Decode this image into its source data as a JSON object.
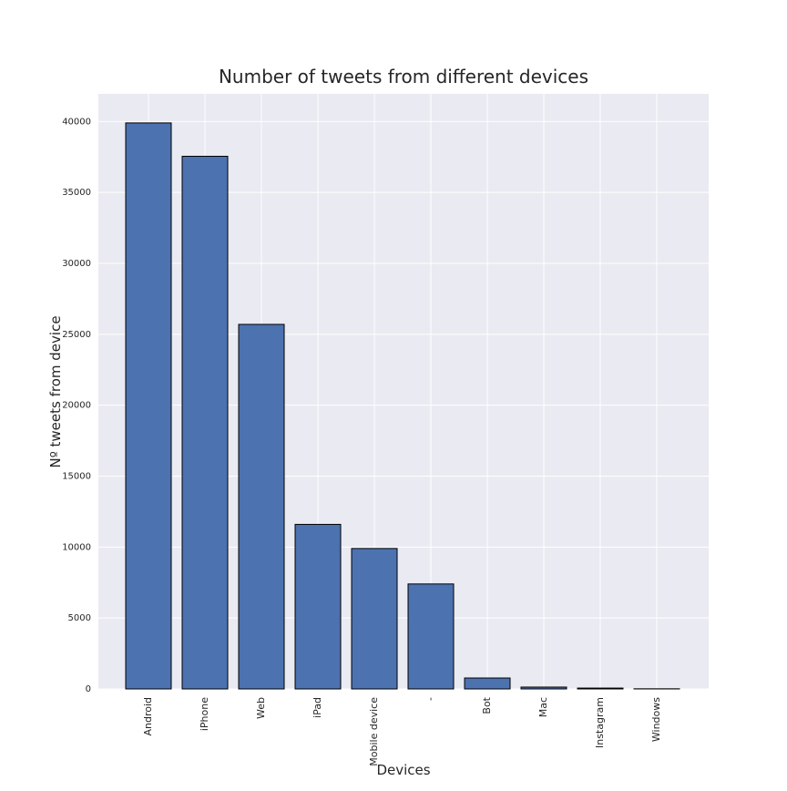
{
  "chart_data": {
    "type": "bar",
    "title": "Number of tweets from different devices",
    "x_label": "Devices",
    "y_label": "Nº tweets from device",
    "categories": [
      "Android",
      "iPhone",
      "Web",
      "iPad",
      "Mobile device",
      "-",
      "Bot",
      "Mac",
      "Instagram",
      "Windows"
    ],
    "values": [
      39900,
      37550,
      25700,
      11600,
      9900,
      7400,
      770,
      130,
      60,
      10
    ],
    "color": "#4c72b0",
    "edge_color": "#000000",
    "ylim": [
      0,
      41950
    ],
    "yticks": [
      0,
      5000,
      10000,
      15000,
      20000,
      25000,
      30000,
      35000,
      40000
    ],
    "grid": true
  }
}
